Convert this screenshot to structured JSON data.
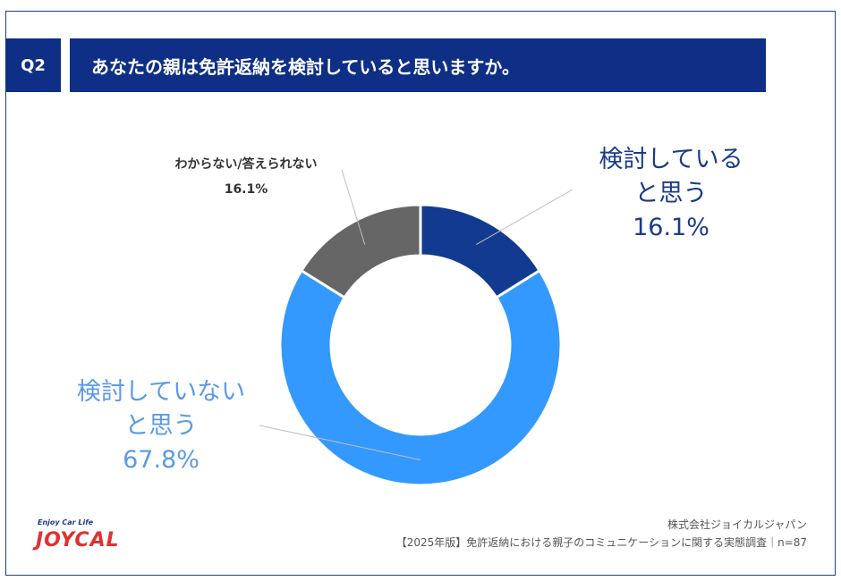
{
  "header": {
    "badge": "Q2",
    "question": "あなたの親は免許返納を検討していると思いますか。"
  },
  "chart_data": {
    "type": "pie",
    "variant": "donut",
    "categories": [
      "検討していると思う",
      "検討していないと思う",
      "わからない/答えられない"
    ],
    "values": [
      16.1,
      67.8,
      16.1
    ],
    "colors": [
      "#123a91",
      "#3399ff",
      "#666666"
    ],
    "data_labels": {
      "yes": {
        "line1": "検討している",
        "line2": "と思う",
        "value": "16.1%"
      },
      "no": {
        "line1": "検討していない",
        "line2": "と思う",
        "value": "67.8%"
      },
      "dk": {
        "line1": "わからない/答えられない",
        "value": "16.1%"
      }
    }
  },
  "footer": {
    "company": "株式会社ジョイカルジャパン",
    "source": "【2025年版】免許返納における親子のコミュニケーションに関する実態調査｜n=87"
  },
  "logo": {
    "tagline": "Enjoy Car Life",
    "wordmark": "JOYCAL"
  }
}
